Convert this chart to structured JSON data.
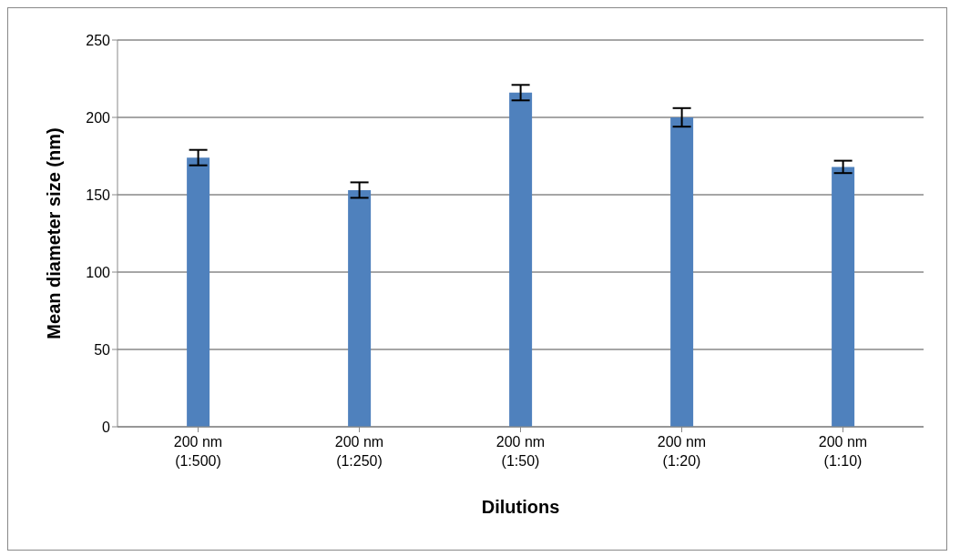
{
  "chart_data": {
    "type": "bar",
    "categories": [
      "200 nm (1:500)",
      "200 nm (1:250)",
      "200 nm (1:50)",
      "200 nm (1:20)",
      "200 nm (1:10)"
    ],
    "values": [
      174,
      153,
      216,
      200,
      168
    ],
    "errors": [
      5,
      5,
      5,
      6,
      4
    ],
    "color": "#4f81bd",
    "xlabel": "Dilutions",
    "ylabel": "Mean diameter size (nm)",
    "ylim": [
      0,
      250
    ],
    "yticks": [
      0,
      50,
      100,
      150,
      200,
      250
    ],
    "grid": "y"
  }
}
